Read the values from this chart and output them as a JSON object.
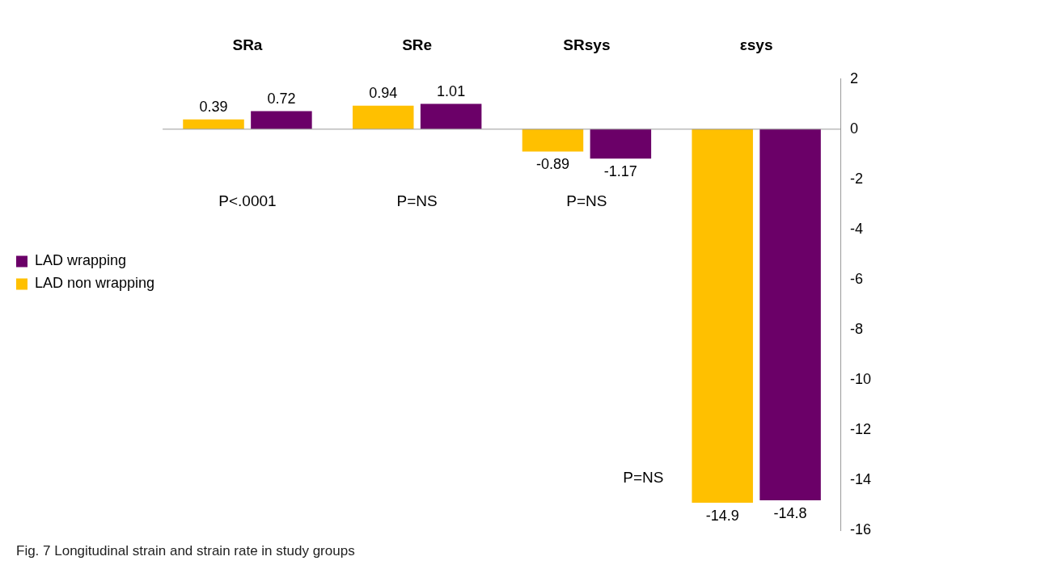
{
  "chart_data": {
    "type": "bar",
    "categories": [
      "SRa",
      "SRe",
      "SRsys",
      "εsys"
    ],
    "series": [
      {
        "name": "LAD non wrapping",
        "color": "#ffc000",
        "values": [
          0.39,
          0.94,
          -0.89,
          -14.9
        ]
      },
      {
        "name": "LAD wrapping",
        "color": "#6b0068",
        "values": [
          0.72,
          1.01,
          -1.17,
          -14.8
        ]
      }
    ],
    "ylim": [
      -16,
      2
    ],
    "yticks": [
      -16,
      -14,
      -12,
      -10,
      -8,
      -6,
      -4,
      -2,
      0,
      2
    ],
    "grid": false,
    "ref_lines": [
      {
        "axis": "y",
        "value": 0,
        "color": "#999999"
      }
    ],
    "legend": "left",
    "data_labels": true,
    "annotations": [
      "P<.0001",
      "P=NS",
      "P=NS",
      "P=NS",
      "Fig. 7 Longitudinal strain and strain rate in study groups"
    ]
  }
}
